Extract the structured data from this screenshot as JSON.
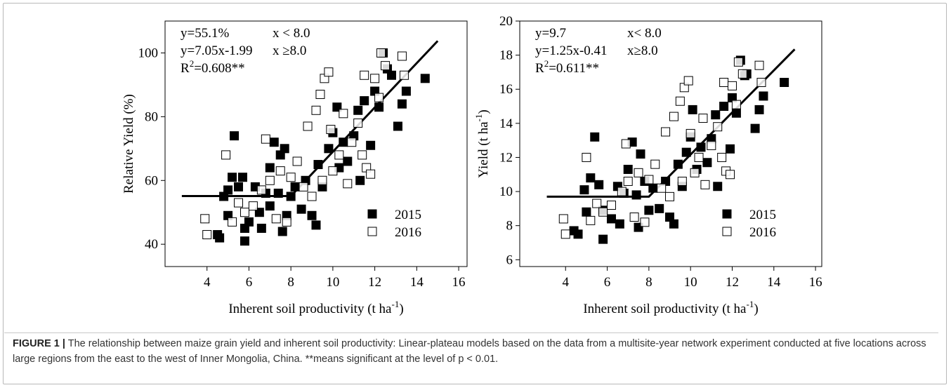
{
  "chart_data": [
    {
      "type": "scatter",
      "ylabel": {
        "text": "Relative Yield (%)"
      },
      "xlabel": {
        "text": "Inherent soil productivity (t ha",
        "sup": "-1",
        "end": ")"
      },
      "annotations": [
        [
          "y=55.1%",
          "x <  8.0"
        ],
        [
          "y=7.05x-1.99",
          "x ≥8.0"
        ]
      ],
      "r2": {
        "base": "R",
        "sup": "2",
        "rest": "=0.608**"
      },
      "xlim": [
        2,
        16.4
      ],
      "xticks": [
        4,
        6,
        8,
        10,
        12,
        14,
        16
      ],
      "ylim": [
        33,
        110
      ],
      "yticks": [
        40,
        60,
        80,
        100
      ],
      "legend": "lower right",
      "fit": {
        "x": [
          2.8,
          8,
          15
        ],
        "values": [
          55.1,
          55.1,
          103.76
        ],
        "color": "#000000"
      },
      "series": [
        {
          "name": "2015",
          "color": "#000000",
          "filled": true,
          "x": [
            4.5,
            4.6,
            4.8,
            5.0,
            5.0,
            5.2,
            5.3,
            5.5,
            5.7,
            5.8,
            5.8,
            6.0,
            6.3,
            6.5,
            6.6,
            6.8,
            7.0,
            7.0,
            7.2,
            7.4,
            7.5,
            7.6,
            7.7,
            7.8,
            8.0,
            8.2,
            8.5,
            8.7,
            9.0,
            9.2,
            9.3,
            9.5,
            9.8,
            10.0,
            10.2,
            10.3,
            10.5,
            10.7,
            11.0,
            11.2,
            11.3,
            11.5,
            11.8,
            12.0,
            12.2,
            12.4,
            12.6,
            12.8,
            13.1,
            13.3,
            13.5,
            14.4
          ],
          "values": [
            43,
            42,
            55,
            57,
            49,
            61,
            74,
            58,
            61,
            45,
            41,
            47,
            58,
            50,
            45,
            56,
            64,
            52,
            72,
            56,
            68,
            44,
            70,
            49,
            55,
            58,
            51,
            60,
            49,
            46,
            65,
            58,
            70,
            75,
            83,
            64,
            72,
            66,
            74,
            82,
            60,
            85,
            71,
            88,
            83,
            100,
            95,
            93,
            77,
            84,
            88,
            92
          ]
        },
        {
          "name": "2016",
          "color": "#000000",
          "filled": false,
          "x": [
            3.9,
            4.0,
            4.9,
            5.2,
            5.5,
            5.8,
            6.2,
            6.6,
            6.8,
            7.0,
            7.3,
            7.5,
            7.8,
            8.0,
            8.3,
            8.6,
            8.8,
            9.0,
            9.2,
            9.4,
            9.5,
            9.6,
            9.8,
            9.9,
            10.0,
            10.3,
            10.5,
            10.7,
            10.9,
            11.2,
            11.4,
            11.5,
            11.6,
            11.8,
            12.0,
            12.2,
            12.3,
            12.5,
            13.3,
            13.4
          ],
          "values": [
            48,
            43,
            68,
            47,
            53,
            50,
            52,
            57,
            73,
            60,
            48,
            63,
            47,
            61,
            66,
            58,
            77,
            55,
            82,
            87,
            60,
            92,
            94,
            76,
            63,
            68,
            81,
            59,
            72,
            78,
            68,
            93,
            64,
            62,
            92,
            86,
            100,
            96,
            99,
            93
          ]
        }
      ]
    },
    {
      "type": "scatter",
      "ylabel": {
        "text": "Yield (t ha",
        "sup": "-1",
        "end": ")"
      },
      "xlabel": {
        "text": "Inherent soil productivity (t ha",
        "sup": "-1",
        "end": ")"
      },
      "annotations": [
        [
          "y=9.7",
          "x< 8.0"
        ],
        [
          "y=1.25x-0.41",
          "x≥8.0"
        ]
      ],
      "r2": {
        "base": "R",
        "sup": "2",
        "rest": "=0.611**"
      },
      "xlim": [
        1.8,
        16.3
      ],
      "xticks": [
        4,
        6,
        8,
        10,
        12,
        14,
        16
      ],
      "ylim": [
        5.6,
        20
      ],
      "yticks": [
        6,
        8,
        10,
        12,
        14,
        16,
        18,
        20
      ],
      "legend": "lower right",
      "fit": {
        "x": [
          3.1,
          8,
          15
        ],
        "values": [
          9.7,
          9.7,
          18.34
        ],
        "color": "#000000"
      },
      "series": [
        {
          "name": "2015",
          "color": "#000000",
          "filled": true,
          "x": [
            4.4,
            4.6,
            4.9,
            5.0,
            5.2,
            5.4,
            5.6,
            5.8,
            5.8,
            6.2,
            6.5,
            6.6,
            6.8,
            7.0,
            7.2,
            7.4,
            7.5,
            7.6,
            7.8,
            8.0,
            8.2,
            8.5,
            8.8,
            9.0,
            9.2,
            9.4,
            9.6,
            9.8,
            10.0,
            10.1,
            10.3,
            10.5,
            10.8,
            11.0,
            11.2,
            11.3,
            11.6,
            11.9,
            12.0,
            12.2,
            12.4,
            12.6,
            12.7,
            13.1,
            13.3,
            13.5,
            14.5
          ],
          "values": [
            7.7,
            7.5,
            10.1,
            8.8,
            10.8,
            13.2,
            10.4,
            7.2,
            8.9,
            8.4,
            10.3,
            8.1,
            9.9,
            11.3,
            12.9,
            9.8,
            7.9,
            12.2,
            10.6,
            8.9,
            10.2,
            9.0,
            10.6,
            8.5,
            8.1,
            11.6,
            10.3,
            12.3,
            13.2,
            14.8,
            11.3,
            12.6,
            11.7,
            13.1,
            14.5,
            10.3,
            15.0,
            12.5,
            15.5,
            14.6,
            17.7,
            16.8,
            16.9,
            13.7,
            14.8,
            15.6,
            16.4
          ]
        },
        {
          "name": "2016",
          "color": "#000000",
          "filled": false,
          "x": [
            3.9,
            4.0,
            5.0,
            5.2,
            5.5,
            5.8,
            6.2,
            6.7,
            6.9,
            7.0,
            7.3,
            7.5,
            7.8,
            8.0,
            8.3,
            8.6,
            8.8,
            9.0,
            9.2,
            9.5,
            9.6,
            9.7,
            9.9,
            10.0,
            10.2,
            10.4,
            10.6,
            10.7,
            11.0,
            11.3,
            11.5,
            11.6,
            11.7,
            11.9,
            12.0,
            12.2,
            12.3,
            12.5,
            13.3,
            13.4
          ],
          "values": [
            8.4,
            7.5,
            12.0,
            8.3,
            9.3,
            8.8,
            9.2,
            10.0,
            12.8,
            10.6,
            8.5,
            11.1,
            8.2,
            10.7,
            11.6,
            10.2,
            13.5,
            9.7,
            14.4,
            15.3,
            10.6,
            16.1,
            16.5,
            13.4,
            11.1,
            12.0,
            14.3,
            10.4,
            12.7,
            13.8,
            12.0,
            16.4,
            11.2,
            11.0,
            16.2,
            15.1,
            17.6,
            16.9,
            17.4,
            16.4
          ]
        }
      ]
    }
  ],
  "caption": {
    "label": "FIGURE 1 |",
    "text": "The relationship between maize grain yield and inherent soil productivity: Linear-plateau models based on the data from a multisite-year network experiment conducted at five locations across large regions from the east to the west of Inner Mongolia, China. **means significant at the level of p < 0.01."
  }
}
